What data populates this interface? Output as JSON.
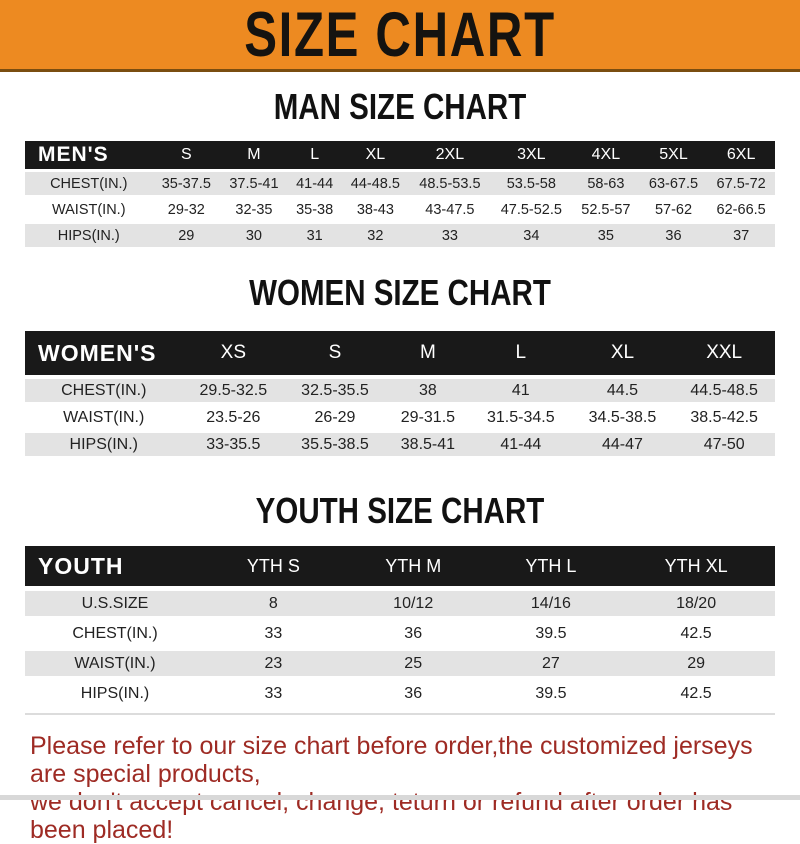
{
  "banner": {
    "title": "SIZE CHART"
  },
  "chart_data": [
    {
      "type": "table",
      "title": "MAN SIZE CHART",
      "group_label": "MEN'S",
      "columns": [
        "S",
        "M",
        "L",
        "XL",
        "2XL",
        "3XL",
        "4XL",
        "5XL",
        "6XL"
      ],
      "rows": [
        {
          "label": "CHEST(IN.)",
          "values": [
            "35-37.5",
            "37.5-41",
            "41-44",
            "44-48.5",
            "48.5-53.5",
            "53.5-58",
            "58-63",
            "63-67.5",
            "67.5-72"
          ]
        },
        {
          "label": "WAIST(IN.)",
          "values": [
            "29-32",
            "32-35",
            "35-38",
            "38-43",
            "43-47.5",
            "47.5-52.5",
            "52.5-57",
            "57-62",
            "62-66.5"
          ]
        },
        {
          "label": "HIPS(IN.)",
          "values": [
            "29",
            "30",
            "31",
            "32",
            "33",
            "34",
            "35",
            "36",
            "37"
          ]
        }
      ]
    },
    {
      "type": "table",
      "title": "WOMEN SIZE CHART",
      "group_label": "WOMEN'S",
      "columns": [
        "XS",
        "S",
        "M",
        "L",
        "XL",
        "XXL"
      ],
      "rows": [
        {
          "label": "CHEST(IN.)",
          "values": [
            "29.5-32.5",
            "32.5-35.5",
            "38",
            "41",
            "44.5",
            "44.5-48.5"
          ]
        },
        {
          "label": "WAIST(IN.)",
          "values": [
            "23.5-26",
            "26-29",
            "29-31.5",
            "31.5-34.5",
            "34.5-38.5",
            "38.5-42.5"
          ]
        },
        {
          "label": "HIPS(IN.)",
          "values": [
            "33-35.5",
            "35.5-38.5",
            "38.5-41",
            "41-44",
            "44-47",
            "47-50"
          ]
        }
      ]
    },
    {
      "type": "table",
      "title": "YOUTH SIZE CHART",
      "group_label": "YOUTH",
      "columns": [
        "YTH S",
        "YTH M",
        "YTH L",
        "YTH XL"
      ],
      "rows": [
        {
          "label": "U.S.SIZE",
          "values": [
            "8",
            "10/12",
            "14/16",
            "18/20"
          ]
        },
        {
          "label": "CHEST(IN.)",
          "values": [
            "33",
            "36",
            "39.5",
            "42.5"
          ]
        },
        {
          "label": "WAIST(IN.)",
          "values": [
            "23",
            "25",
            "27",
            "29"
          ]
        },
        {
          "label": "HIPS(IN.)",
          "values": [
            "33",
            "36",
            "39.5",
            "42.5"
          ]
        }
      ]
    }
  ],
  "footer": {
    "line1": "Please refer to our size chart before order,the customized jerseys are special products,",
    "line2": "we don't accept cancel, change, teturn or refund after order has been placed!"
  },
  "colors": {
    "banner_bg": "#ED8A21",
    "banner_border": "#7A4D10",
    "banner_text": "#151310",
    "header_bar_bg": "#191919",
    "header_bar_text": "#FFFFFF",
    "row_alt_bg": "#E3E3E3",
    "body_text": "#222222",
    "footer_text": "#9E2B24",
    "bottom_strip": "#D8D8D8"
  }
}
